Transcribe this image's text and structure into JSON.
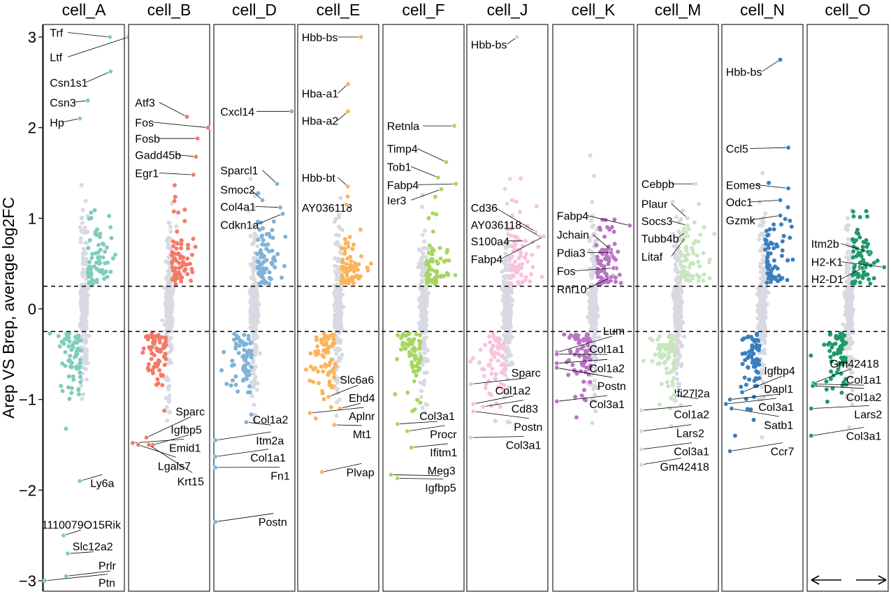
{
  "chart_data": {
    "type": "scatter",
    "ylabel": "Arep VS Brep, average log2FC",
    "ylim": [
      -3.05,
      3.1
    ],
    "yticks": [
      -3,
      -2,
      -1,
      0,
      1,
      2,
      3
    ],
    "threshold": 0.25,
    "background_color": "#d9d9e2",
    "panels": [
      {
        "name": "cell_A",
        "color": "#7fcdbb",
        "spread": 0.45,
        "labels": [
          {
            "gene": "Trf",
            "x": 0.82,
            "y": 3.0,
            "lx": 0.08,
            "ly": 3.05
          },
          {
            "gene": "Ltf",
            "x": 1.05,
            "y": 3.0,
            "lx": 0.08,
            "ly": 2.78
          },
          {
            "gene": "Csn1s1",
            "x": 0.83,
            "y": 2.62,
            "lx": 0.08,
            "ly": 2.5
          },
          {
            "gene": "Csn3",
            "x": 0.55,
            "y": 2.3,
            "lx": 0.08,
            "ly": 2.28
          },
          {
            "gene": "Hp",
            "x": 0.45,
            "y": 2.1,
            "lx": 0.08,
            "ly": 2.06
          },
          {
            "gene": "Ly6a",
            "x": 0.45,
            "y": -1.9,
            "lx": 0.58,
            "ly": -1.92
          },
          {
            "gene": "1110079O15Rik",
            "x": 0.25,
            "y": -2.5,
            "lx": -0.02,
            "ly": -2.38
          },
          {
            "gene": "Slc12a2",
            "x": 0.3,
            "y": -2.7,
            "lx": 0.36,
            "ly": -2.62
          },
          {
            "gene": "Prlr",
            "x": 0.28,
            "y": -2.95,
            "lx": 0.68,
            "ly": -2.83
          },
          {
            "gene": "Ptn",
            "x": 0.02,
            "y": -3.0,
            "lx": 0.68,
            "ly": -3.02
          }
        ]
      },
      {
        "name": "cell_B",
        "color": "#f47a68",
        "spread": 0.3,
        "labels": [
          {
            "gene": "Atf3",
            "x": 0.72,
            "y": 2.12,
            "lx": 0.08,
            "ly": 2.28
          },
          {
            "gene": "Fos",
            "x": 0.98,
            "y": 2.0,
            "lx": 0.08,
            "ly": 2.06
          },
          {
            "gene": "Fosb",
            "x": 0.85,
            "y": 1.88,
            "lx": 0.08,
            "ly": 1.88
          },
          {
            "gene": "Gadd45b",
            "x": 0.83,
            "y": 1.68,
            "lx": 0.08,
            "ly": 1.7
          },
          {
            "gene": "Egr1",
            "x": 0.8,
            "y": 1.48,
            "lx": 0.08,
            "ly": 1.5
          },
          {
            "gene": "Sparc",
            "x": 0.22,
            "y": -1.42,
            "lx": 0.58,
            "ly": -1.13
          },
          {
            "gene": "Igfbp5",
            "x": 0.3,
            "y": -1.5,
            "lx": 0.52,
            "ly": -1.33
          },
          {
            "gene": "Emid1",
            "x": 0.05,
            "y": -1.48,
            "lx": 0.5,
            "ly": -1.53
          },
          {
            "gene": "Lgals7",
            "x": 0.12,
            "y": -1.5,
            "lx": 0.36,
            "ly": -1.73
          },
          {
            "gene": "Krt15",
            "x": 0.25,
            "y": -1.5,
            "lx": 0.6,
            "ly": -1.9
          }
        ]
      },
      {
        "name": "cell_D",
        "color": "#7fb2d6",
        "spread": 0.4,
        "labels": [
          {
            "gene": "Cxcl14",
            "x": 0.96,
            "y": 2.18,
            "lx": 0.08,
            "ly": 2.18
          },
          {
            "gene": "Sparcl1",
            "x": 0.78,
            "y": 1.38,
            "lx": 0.08,
            "ly": 1.53
          },
          {
            "gene": "Smoc2",
            "x": 0.6,
            "y": 1.2,
            "lx": 0.08,
            "ly": 1.32
          },
          {
            "gene": "Col4a1",
            "x": 0.82,
            "y": 1.12,
            "lx": 0.08,
            "ly": 1.13
          },
          {
            "gene": "Cdkn1a",
            "x": 0.85,
            "y": 1.05,
            "lx": 0.08,
            "ly": 0.93
          },
          {
            "gene": "Col1a2",
            "x": 0.4,
            "y": -1.25,
            "lx": 0.48,
            "ly": -1.22
          },
          {
            "gene": "Itm2a",
            "x": 0.02,
            "y": -1.45,
            "lx": 0.52,
            "ly": -1.45
          },
          {
            "gene": "Col1a1",
            "x": 0.02,
            "y": -1.63,
            "lx": 0.45,
            "ly": -1.64
          },
          {
            "gene": "Fn1",
            "x": 0.02,
            "y": -1.75,
            "lx": 0.7,
            "ly": -1.84
          },
          {
            "gene": "Postn",
            "x": 0.02,
            "y": -2.35,
            "lx": 0.55,
            "ly": -2.35
          }
        ]
      },
      {
        "name": "cell_E",
        "color": "#fbb45c",
        "spread": 0.45,
        "labels": [
          {
            "gene": "Hbb-bs",
            "x": 0.78,
            "y": 3.0,
            "lx": 0.05,
            "ly": 3.0
          },
          {
            "gene": "Hba-a1",
            "x": 0.62,
            "y": 2.48,
            "lx": 0.05,
            "ly": 2.38
          },
          {
            "gene": "Hba-a2",
            "x": 0.62,
            "y": 2.18,
            "lx": 0.05,
            "ly": 2.08
          },
          {
            "gene": "Hbb-bt",
            "x": 0.62,
            "y": 1.35,
            "lx": 0.05,
            "ly": 1.45
          },
          {
            "gene": "AY036118",
            "x": 0.6,
            "y": 1.15,
            "lx": 0.05,
            "ly": 1.12
          },
          {
            "gene": "Slc6a6",
            "x": 0.38,
            "y": -0.97,
            "lx": 0.52,
            "ly": -0.78
          },
          {
            "gene": "Ehd4",
            "x": 0.52,
            "y": -1.1,
            "lx": 0.63,
            "ly": -0.98
          },
          {
            "gene": "Aplnr",
            "x": 0.15,
            "y": -1.15,
            "lx": 0.63,
            "ly": -1.18
          },
          {
            "gene": "Mt1",
            "x": 0.45,
            "y": -1.28,
            "lx": 0.68,
            "ly": -1.38
          },
          {
            "gene": "Plvap",
            "x": 0.3,
            "y": -1.8,
            "lx": 0.6,
            "ly": -1.8
          }
        ]
      },
      {
        "name": "cell_F",
        "color": "#a8d663",
        "spread": 0.4,
        "labels": [
          {
            "gene": "Retnla",
            "x": 0.88,
            "y": 2.02,
            "lx": 0.05,
            "ly": 2.02
          },
          {
            "gene": "Timp4",
            "x": 0.78,
            "y": 1.62,
            "lx": 0.05,
            "ly": 1.77
          },
          {
            "gene": "Tob1",
            "x": 0.68,
            "y": 1.45,
            "lx": 0.05,
            "ly": 1.57
          },
          {
            "gene": "Fabp4",
            "x": 0.9,
            "y": 1.38,
            "lx": 0.05,
            "ly": 1.37
          },
          {
            "gene": "Ier3",
            "x": 0.72,
            "y": 1.32,
            "lx": 0.05,
            "ly": 1.2
          },
          {
            "gene": "Col3a1",
            "x": 0.18,
            "y": -1.27,
            "lx": 0.45,
            "ly": -1.18
          },
          {
            "gene": "Procr",
            "x": 0.3,
            "y": -1.35,
            "lx": 0.58,
            "ly": -1.38
          },
          {
            "gene": "Ifitm1",
            "x": 0.35,
            "y": -1.53,
            "lx": 0.58,
            "ly": -1.58
          },
          {
            "gene": "Meg3",
            "x": 0.1,
            "y": -1.83,
            "lx": 0.55,
            "ly": -1.78
          },
          {
            "gene": "Igfbp5",
            "x": 0.18,
            "y": -1.87,
            "lx": 0.52,
            "ly": -1.97
          }
        ]
      },
      {
        "name": "cell_J",
        "color": "#f9c2dd",
        "spread": 0.45,
        "labels": [
          {
            "gene": "Hbb-bs",
            "x": 0.62,
            "y": 3.0,
            "lx": 0.05,
            "ly": 2.92
          },
          {
            "gene": "Cd36",
            "x": 0.85,
            "y": 0.85,
            "lx": 0.05,
            "ly": 1.12
          },
          {
            "gene": "AY036118",
            "x": 0.9,
            "y": 0.8,
            "lx": 0.05,
            "ly": 0.93
          },
          {
            "gene": "S100a4",
            "x": 0.72,
            "y": 0.75,
            "lx": 0.05,
            "ly": 0.75
          },
          {
            "gene": "Fabp4",
            "x": 0.95,
            "y": 0.8,
            "lx": 0.05,
            "ly": 0.55
          },
          {
            "gene": "Sparc",
            "x": 0.05,
            "y": -0.83,
            "lx": 0.55,
            "ly": -0.7
          },
          {
            "gene": "Col1a2",
            "x": 0.08,
            "y": -1.05,
            "lx": 0.35,
            "ly": -0.9
          },
          {
            "gene": "Cd83",
            "x": 0.2,
            "y": -1.08,
            "lx": 0.55,
            "ly": -1.1
          },
          {
            "gene": "Postn",
            "x": 0.08,
            "y": -1.13,
            "lx": 0.58,
            "ly": -1.3
          },
          {
            "gene": "Col3a1",
            "x": 0.05,
            "y": -1.42,
            "lx": 0.48,
            "ly": -1.5
          }
        ]
      },
      {
        "name": "cell_K",
        "color": "#b974c4",
        "spread": 0.3,
        "labels": [
          {
            "gene": "Fabp4",
            "x": 0.95,
            "y": 0.92,
            "lx": 0.05,
            "ly": 1.03
          },
          {
            "gene": "Jchain",
            "x": 0.72,
            "y": 0.65,
            "lx": 0.05,
            "ly": 0.82
          },
          {
            "gene": "Pdia3",
            "x": 0.72,
            "y": 0.62,
            "lx": 0.05,
            "ly": 0.62
          },
          {
            "gene": "Fos",
            "x": 0.75,
            "y": 0.45,
            "lx": 0.05,
            "ly": 0.42
          },
          {
            "gene": "Rnf10",
            "x": 0.72,
            "y": 0.35,
            "lx": 0.05,
            "ly": 0.22
          },
          {
            "gene": "Lum",
            "x": 0.05,
            "y": -0.48,
            "lx": 0.62,
            "ly": -0.24
          },
          {
            "gene": "Col1a1",
            "x": 0.05,
            "y": -0.5,
            "lx": 0.45,
            "ly": -0.44
          },
          {
            "gene": "Col1a2",
            "x": 0.05,
            "y": -0.6,
            "lx": 0.45,
            "ly": -0.65
          },
          {
            "gene": "Postn",
            "x": 0.05,
            "y": -0.65,
            "lx": 0.55,
            "ly": -0.85
          },
          {
            "gene": "Col3a1",
            "x": 0.05,
            "y": -1.02,
            "lx": 0.45,
            "ly": -1.05
          }
        ]
      },
      {
        "name": "cell_M",
        "color": "#c7e6c0",
        "spread": 0.45,
        "labels": [
          {
            "gene": "Cebpb",
            "x": 0.72,
            "y": 1.38,
            "lx": 0.05,
            "ly": 1.38
          },
          {
            "gene": "Plaur",
            "x": 0.62,
            "y": 1.0,
            "lx": 0.05,
            "ly": 1.16
          },
          {
            "gene": "Socs3",
            "x": 0.62,
            "y": 0.92,
            "lx": 0.05,
            "ly": 0.97
          },
          {
            "gene": "Tubb4b",
            "x": 0.6,
            "y": 0.85,
            "lx": 0.05,
            "ly": 0.78
          },
          {
            "gene": "Litaf",
            "x": 0.6,
            "y": 0.8,
            "lx": 0.05,
            "ly": 0.58
          },
          {
            "gene": "Ifi27l2a",
            "x": 0.45,
            "y": -0.95,
            "lx": 0.45,
            "ly": -0.93
          },
          {
            "gene": "Col1a2",
            "x": 0.05,
            "y": -1.12,
            "lx": 0.45,
            "ly": -1.16
          },
          {
            "gene": "Lars2",
            "x": 0.05,
            "y": -1.35,
            "lx": 0.48,
            "ly": -1.37
          },
          {
            "gene": "Col3a1",
            "x": 0.05,
            "y": -1.55,
            "lx": 0.45,
            "ly": -1.57
          },
          {
            "gene": "Gm42418",
            "x": 0.05,
            "y": -1.72,
            "lx": 0.28,
            "ly": -1.74
          }
        ]
      },
      {
        "name": "cell_N",
        "color": "#3a7fbd",
        "spread": 0.4,
        "labels": [
          {
            "gene": "Hbb-bs",
            "x": 0.72,
            "y": 2.75,
            "lx": 0.05,
            "ly": 2.62
          },
          {
            "gene": "Ccl5",
            "x": 0.82,
            "y": 1.78,
            "lx": 0.05,
            "ly": 1.77
          },
          {
            "gene": "Eomes",
            "x": 0.82,
            "y": 1.33,
            "lx": 0.05,
            "ly": 1.37
          },
          {
            "gene": "Odc1",
            "x": 0.72,
            "y": 1.2,
            "lx": 0.05,
            "ly": 1.18
          },
          {
            "gene": "Gzmk",
            "x": 0.72,
            "y": 1.03,
            "lx": 0.05,
            "ly": 0.98
          },
          {
            "gene": "Igfbp4",
            "x": 0.25,
            "y": -0.92,
            "lx": 0.52,
            "ly": -0.68
          },
          {
            "gene": "Dapl1",
            "x": 0.1,
            "y": -1.0,
            "lx": 0.52,
            "ly": -0.88
          },
          {
            "gene": "Col3a1",
            "x": 0.05,
            "y": -1.05,
            "lx": 0.45,
            "ly": -1.08
          },
          {
            "gene": "Satb1",
            "x": 0.12,
            "y": -1.1,
            "lx": 0.52,
            "ly": -1.28
          },
          {
            "gene": "Ccr7",
            "x": 0.1,
            "y": -1.57,
            "lx": 0.6,
            "ly": -1.57
          }
        ]
      },
      {
        "name": "cell_O",
        "color": "#1f9a6a",
        "spread": 0.3,
        "labels": [
          {
            "gene": "Itm2b",
            "x": 0.75,
            "y": 0.63,
            "lx": 0.05,
            "ly": 0.72
          },
          {
            "gene": "H2-K1",
            "x": 0.95,
            "y": 0.46,
            "lx": 0.05,
            "ly": 0.52
          },
          {
            "gene": "H2-D1",
            "x": 0.68,
            "y": 0.45,
            "lx": 0.05,
            "ly": 0.33
          },
          {
            "gene": "Gm42418",
            "x": 0.08,
            "y": -0.82,
            "lx": 0.28,
            "ly": -0.6
          },
          {
            "gene": "Col1a1",
            "x": 0.1,
            "y": -0.83,
            "lx": 0.48,
            "ly": -0.78
          },
          {
            "gene": "Col1a2",
            "x": 0.07,
            "y": -0.85,
            "lx": 0.48,
            "ly": -0.97
          },
          {
            "gene": "Lars2",
            "x": 0.05,
            "y": -1.1,
            "lx": 0.58,
            "ly": -1.16
          },
          {
            "gene": "Col3a1",
            "x": 0.05,
            "y": -1.4,
            "lx": 0.48,
            "ly": -1.4
          }
        ]
      }
    ]
  }
}
